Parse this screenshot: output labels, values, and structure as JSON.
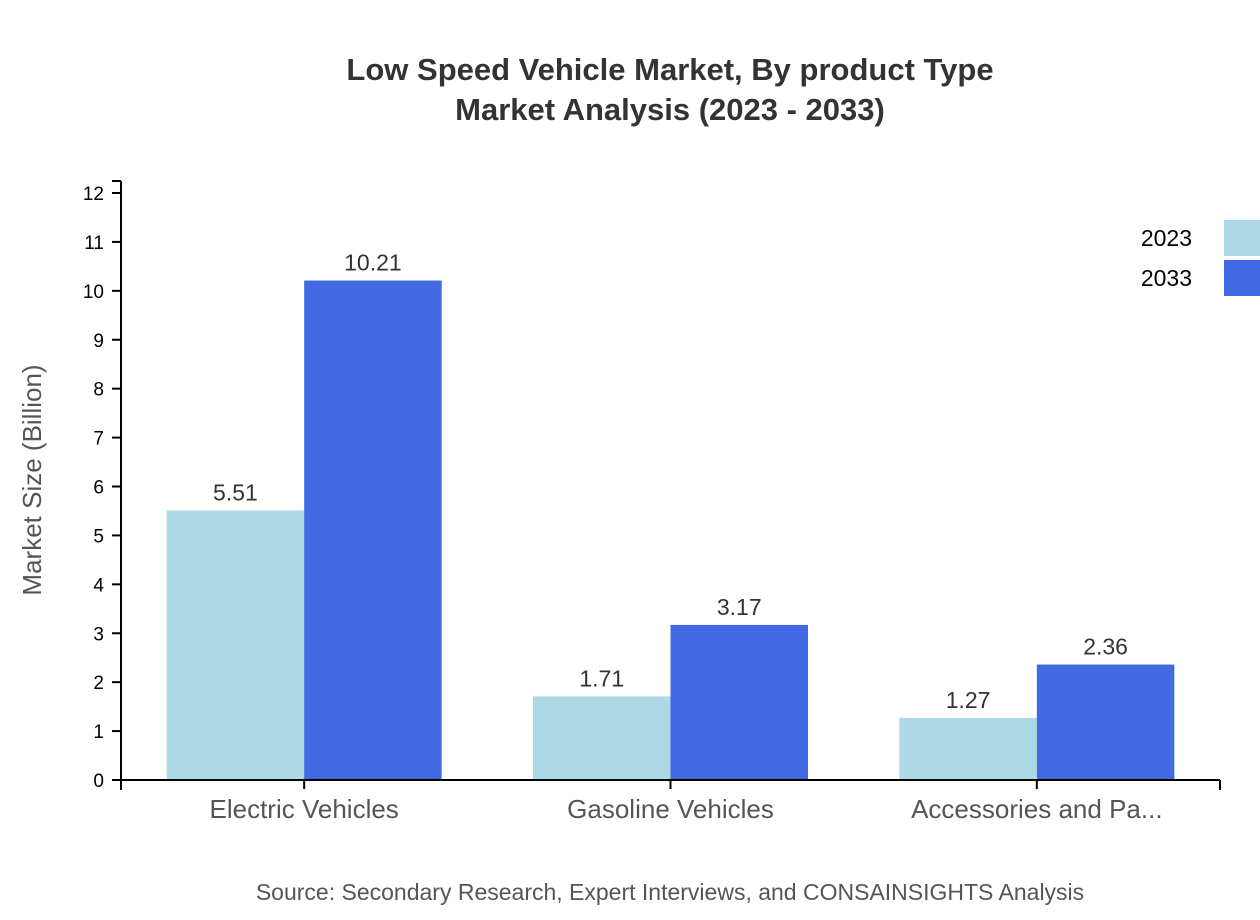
{
  "chart_data": {
    "type": "bar",
    "title": [
      "Low Speed Vehicle Market, By product Type",
      "Market Analysis (2023 - 2033)"
    ],
    "xlabel": "",
    "ylabel": "Market Size (Billion)",
    "categories": [
      "Electric Vehicles",
      "Gasoline Vehicles",
      "Accessories and Pa..."
    ],
    "series": [
      {
        "name": "2023",
        "color": "#add8e6",
        "values": [
          5.51,
          1.71,
          1.27
        ]
      },
      {
        "name": "2033",
        "color": "#4169e1",
        "values": [
          10.21,
          3.17,
          2.36
        ]
      }
    ],
    "ylim": [
      0,
      12
    ],
    "yticks": [
      0,
      1,
      2,
      3,
      4,
      5,
      6,
      7,
      8,
      9,
      10,
      11,
      12
    ],
    "grid": false,
    "legend": "top-right",
    "source": "Source: Secondary Research, Expert Interviews, and CONSAINSIGHTS Analysis"
  }
}
